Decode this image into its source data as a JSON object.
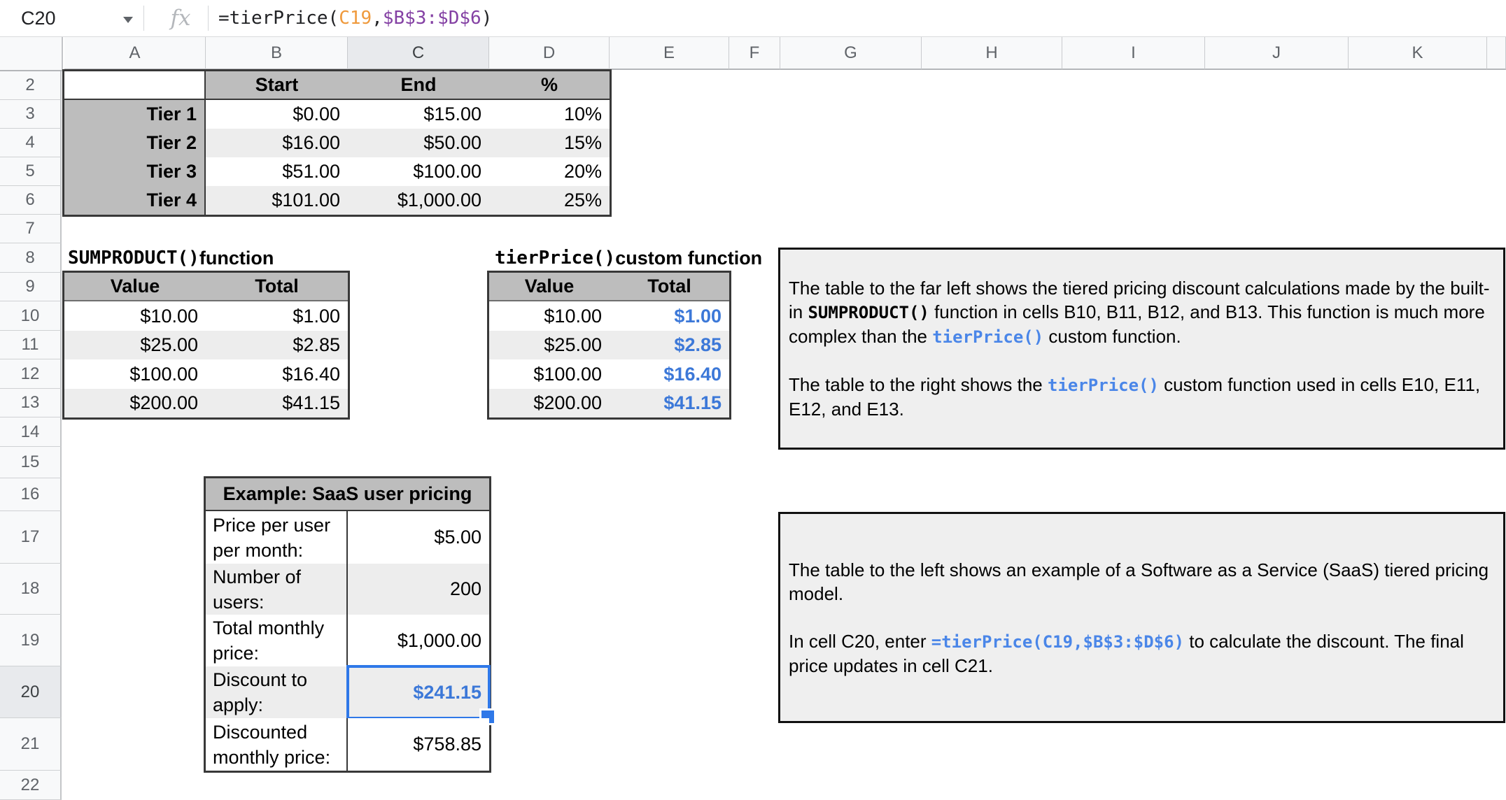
{
  "formula_bar": {
    "cell_ref": "C20",
    "fx_label": "fx",
    "formula": {
      "pre": "=tierPrice(",
      "arg1": "C19",
      "comma": ",",
      "range": "$B$3:$D$6",
      "close": ")"
    }
  },
  "grid": {
    "columns": [
      "A",
      "B",
      "C",
      "D",
      "E",
      "F",
      "G",
      "H",
      "I",
      "J",
      "K"
    ],
    "active_column": "C",
    "rows": [
      "2",
      "3",
      "4",
      "5",
      "6",
      "7",
      "8",
      "9",
      "10",
      "11",
      "12",
      "13",
      "14",
      "15",
      "16",
      "17",
      "18",
      "19",
      "20",
      "21",
      "22"
    ],
    "active_row": "20"
  },
  "tier_table": {
    "headers": {
      "start": "Start",
      "end": "End",
      "pct": "%"
    },
    "rows": [
      {
        "label": "Tier 1",
        "start": "$0.00",
        "end": "$15.00",
        "pct": "10%"
      },
      {
        "label": "Tier 2",
        "start": "$16.00",
        "end": "$50.00",
        "pct": "15%"
      },
      {
        "label": "Tier 3",
        "start": "$51.00",
        "end": "$100.00",
        "pct": "20%"
      },
      {
        "label": "Tier 4",
        "start": "$101.00",
        "end": "$1,000.00",
        "pct": "25%"
      }
    ]
  },
  "sumproduct_table": {
    "title_code": "SUMPRODUCT()",
    "title_rest": " function",
    "col_value": "Value",
    "col_total": "Total",
    "rows": [
      {
        "value": "$10.00",
        "total": "$1.00"
      },
      {
        "value": "$25.00",
        "total": "$2.85"
      },
      {
        "value": "$100.00",
        "total": "$16.40"
      },
      {
        "value": "$200.00",
        "total": "$41.15"
      }
    ]
  },
  "tierprice_table": {
    "title_code": "tierPrice()",
    "title_rest": " custom function",
    "col_value": "Value",
    "col_total": "Total",
    "rows": [
      {
        "value": "$10.00",
        "total": "$1.00"
      },
      {
        "value": "$25.00",
        "total": "$2.85"
      },
      {
        "value": "$100.00",
        "total": "$16.40"
      },
      {
        "value": "$200.00",
        "total": "$41.15"
      }
    ]
  },
  "saas_table": {
    "title": "Example: SaaS user pricing",
    "rows": [
      {
        "label": "Price per user per month:",
        "value": "$5.00"
      },
      {
        "label": "Number of users:",
        "value": "200"
      },
      {
        "label": "Total monthly price:",
        "value": "$1,000.00"
      },
      {
        "label": "Discount to apply:",
        "value": "$241.15",
        "selected": true
      },
      {
        "label": "Discounted monthly price:",
        "value": "$758.85"
      }
    ]
  },
  "note1": {
    "p1_1": "The table to the far left shows the tiered pricing discount calculations made by the built-in ",
    "p1_code": "SUMPRODUCT()",
    "p1_2": " function in cells B10, B11, B12, and B13. This function is much more complex than the ",
    "p1_code2": "tierPrice()",
    "p1_3": " custom function.",
    "p2_1": "The table to the right shows the ",
    "p2_code": "tierPrice()",
    "p2_2": " custom function used in cells E10, E11, E12, and E13."
  },
  "note2": {
    "p1": "The table to the left shows an example of a Software as a Service (SaaS) tiered pricing model.",
    "p2_1": "In cell C20, enter ",
    "p2_code": "=tierPrice(C19,$B$3:$D$6)",
    "p2_2": " to calculate the discount. The final price updates in cell C21."
  },
  "colors": {
    "selection_blue": "#2f78e8",
    "value_blue": "#3c78d8",
    "code_blue": "#4a86e8",
    "formula_orange": "#ef9a3d",
    "formula_purple": "#8441a4",
    "table_header_gray": "#bdbdbd",
    "banding_gray": "#ededed",
    "note_background": "#efefef"
  }
}
